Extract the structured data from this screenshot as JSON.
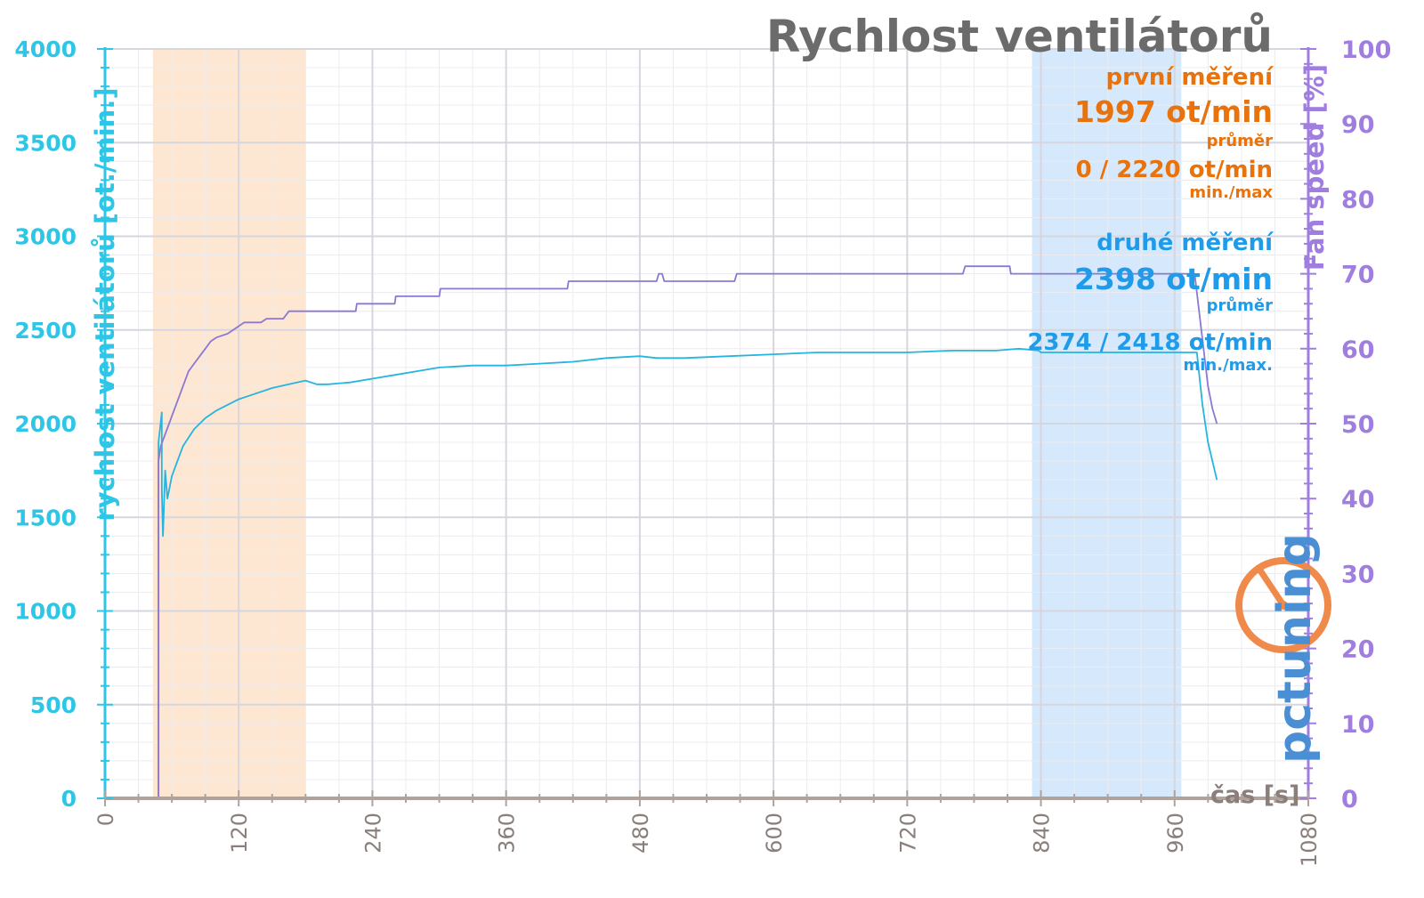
{
  "chart_data": {
    "type": "line",
    "title": "Rychlost ventilátorů",
    "xlabel": "čas [s]",
    "ylabel": "rychlost ventilátorů [ot./min.]",
    "y2label": "Fan speed [%]",
    "xlim": [
      0,
      1080
    ],
    "ylim": [
      0,
      4000
    ],
    "y2lim": [
      0,
      100
    ],
    "x_ticks": [
      0,
      120,
      240,
      360,
      480,
      600,
      720,
      840,
      960,
      1080
    ],
    "y_ticks": [
      0,
      500,
      1000,
      1500,
      2000,
      2500,
      3000,
      3500,
      4000
    ],
    "y2_ticks": [
      0,
      10,
      20,
      30,
      40,
      50,
      60,
      70,
      80,
      90,
      100
    ],
    "grid": true,
    "shaded_regions": [
      {
        "x_start": 43,
        "x_end": 180,
        "color": "#fde7d3"
      },
      {
        "x_start": 832,
        "x_end": 966,
        "color": "#d6e8fb"
      }
    ],
    "series": [
      {
        "color": "#25b5df",
        "axis": "left",
        "points": [
          [
            0,
            0
          ],
          [
            48,
            0
          ],
          [
            48,
            1900
          ],
          [
            51,
            2060
          ],
          [
            51,
            1650
          ],
          [
            52,
            1400
          ],
          [
            54,
            1750
          ],
          [
            56,
            1600
          ],
          [
            60,
            1720
          ],
          [
            70,
            1880
          ],
          [
            80,
            1970
          ],
          [
            90,
            2030
          ],
          [
            100,
            2070
          ],
          [
            110,
            2100
          ],
          [
            120,
            2130
          ],
          [
            135,
            2160
          ],
          [
            150,
            2190
          ],
          [
            165,
            2210
          ],
          [
            180,
            2230
          ],
          [
            190,
            2210
          ],
          [
            200,
            2210
          ],
          [
            220,
            2220
          ],
          [
            240,
            2240
          ],
          [
            260,
            2260
          ],
          [
            280,
            2280
          ],
          [
            300,
            2300
          ],
          [
            330,
            2310
          ],
          [
            360,
            2310
          ],
          [
            390,
            2320
          ],
          [
            420,
            2330
          ],
          [
            450,
            2350
          ],
          [
            480,
            2360
          ],
          [
            495,
            2350
          ],
          [
            520,
            2350
          ],
          [
            560,
            2360
          ],
          [
            600,
            2370
          ],
          [
            640,
            2380
          ],
          [
            680,
            2380
          ],
          [
            720,
            2380
          ],
          [
            760,
            2390
          ],
          [
            800,
            2390
          ],
          [
            820,
            2400
          ],
          [
            838,
            2390
          ],
          [
            840,
            2380
          ],
          [
            880,
            2380
          ],
          [
            920,
            2380
          ],
          [
            958,
            2380
          ],
          [
            980,
            2380
          ],
          [
            985,
            2100
          ],
          [
            990,
            1900
          ],
          [
            998,
            1700
          ]
        ]
      },
      {
        "color": "#8c78d2",
        "axis": "right",
        "points": [
          [
            0,
            0
          ],
          [
            48,
            0
          ],
          [
            48,
            45
          ],
          [
            50,
            47
          ],
          [
            55,
            49
          ],
          [
            60,
            51
          ],
          [
            65,
            53
          ],
          [
            70,
            55
          ],
          [
            75,
            57
          ],
          [
            80,
            58
          ],
          [
            85,
            59
          ],
          [
            90,
            60
          ],
          [
            95,
            61
          ],
          [
            100,
            61.5
          ],
          [
            110,
            62
          ],
          [
            120,
            63
          ],
          [
            125,
            63.5
          ],
          [
            140,
            63.5
          ],
          [
            145,
            64
          ],
          [
            160,
            64
          ],
          [
            165,
            65
          ],
          [
            225,
            65
          ],
          [
            226,
            66
          ],
          [
            260,
            66
          ],
          [
            261,
            67
          ],
          [
            300,
            67
          ],
          [
            301,
            68
          ],
          [
            415,
            68
          ],
          [
            416,
            69
          ],
          [
            495,
            69
          ],
          [
            497,
            70
          ],
          [
            500,
            70
          ],
          [
            502,
            69
          ],
          [
            565,
            69
          ],
          [
            567,
            70
          ],
          [
            770,
            70
          ],
          [
            772,
            71
          ],
          [
            812,
            71
          ],
          [
            813,
            70
          ],
          [
            978,
            70
          ],
          [
            982,
            65
          ],
          [
            986,
            60
          ],
          [
            990,
            55
          ],
          [
            994,
            52
          ],
          [
            998,
            50
          ]
        ]
      }
    ],
    "annotations": {
      "first": {
        "label": "první měření",
        "avg": "1997 ot/min",
        "avg_label": "průměr",
        "minmax": "0 / 2220 ot/min",
        "minmax_label": "min./max"
      },
      "second": {
        "label": "druhé měření",
        "avg": "2398 ot/min",
        "avg_label": "průměr",
        "minmax": "2374 / 2418 ot/min",
        "minmax_label": "min./max."
      }
    },
    "colors": {
      "left_axis": "#2dc6e6",
      "right_axis": "#9f7ee0",
      "x_axis": "#b0a39d",
      "first": "#e8720c",
      "second": "#1f9bea"
    }
  },
  "logo": {
    "name": "pctuning-logo"
  }
}
